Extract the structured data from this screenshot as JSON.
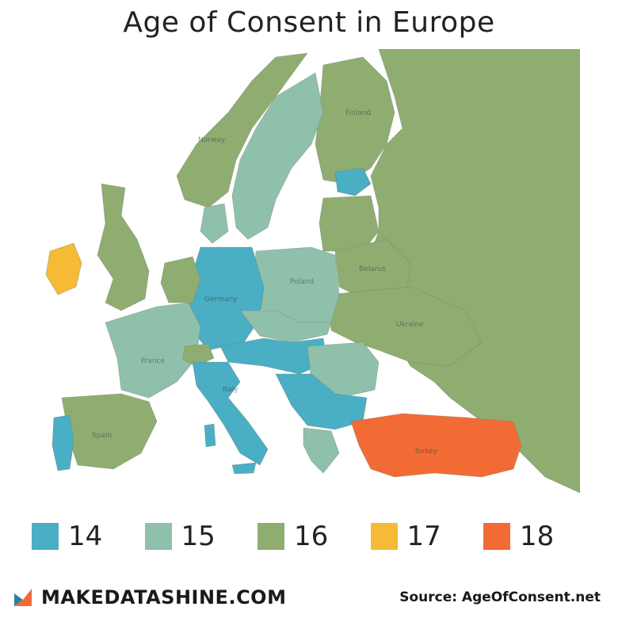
{
  "title": "Age of Consent in Europe",
  "colors": {
    "age14": "#4aaec4",
    "age15": "#8fc0ac",
    "age16": "#8fad71",
    "age17": "#f5bb36",
    "age18": "#f26b35",
    "sea": "#ffffff",
    "outside": "#eeeeee",
    "border": "#6f7f68"
  },
  "legend": [
    {
      "label": "14",
      "color_key": "age14"
    },
    {
      "label": "15",
      "color_key": "age15"
    },
    {
      "label": "16",
      "color_key": "age16"
    },
    {
      "label": "17",
      "color_key": "age17"
    },
    {
      "label": "18",
      "color_key": "age18"
    }
  ],
  "map_labels": {
    "finland": "Finland",
    "norway": "Norway",
    "germany": "Germany",
    "poland": "Poland",
    "belarus": "Belarus",
    "ukraine": "Ukraine",
    "france": "France",
    "italy": "Italy",
    "spain": "Spain",
    "turkey": "Turkey"
  },
  "brand": {
    "name": "MAKEDATASHINE.COM",
    "icon": "makedatashine-logo-icon"
  },
  "source": "Source: AgeOfConsent.net"
}
